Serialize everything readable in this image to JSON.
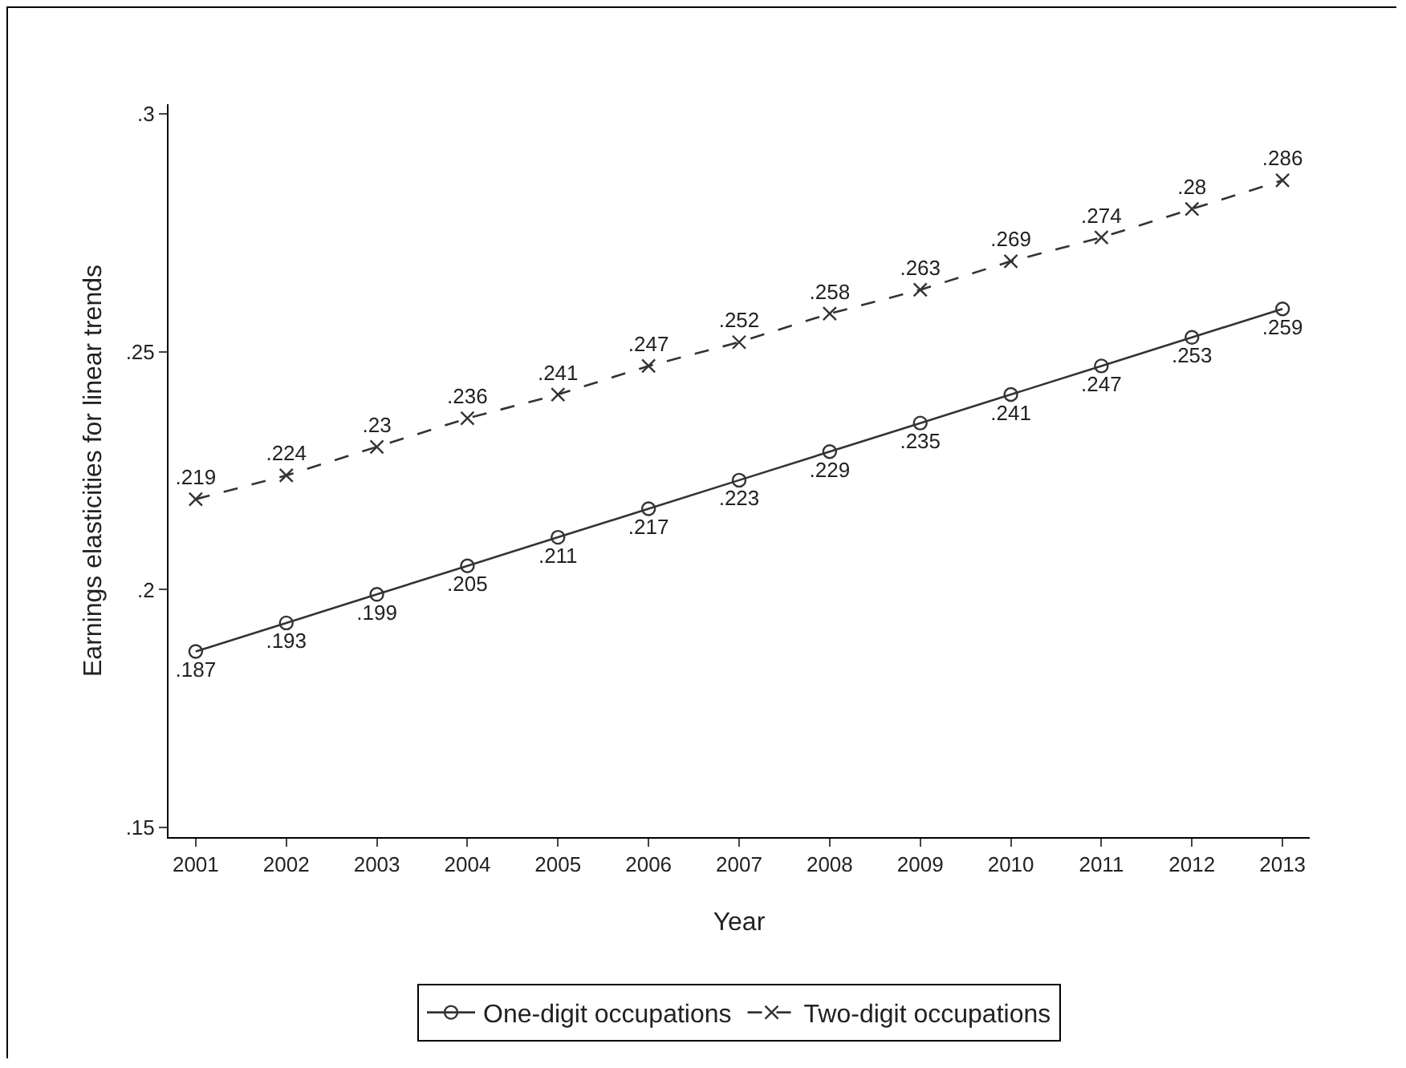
{
  "chart_data": {
    "type": "line",
    "xlabel": "Year",
    "ylabel": "Earnings elasticities for linear trends",
    "x": [
      2001,
      2002,
      2003,
      2004,
      2005,
      2006,
      2007,
      2008,
      2009,
      2010,
      2011,
      2012,
      2013
    ],
    "xlim": [
      2000.7,
      2013.3
    ],
    "xticks": [
      2001,
      2002,
      2003,
      2004,
      2005,
      2006,
      2007,
      2008,
      2009,
      2010,
      2011,
      2012,
      2013
    ],
    "ylim": [
      0.148,
      0.302
    ],
    "yticks": [
      {
        "value": 0.15,
        "label": ".15"
      },
      {
        "value": 0.2,
        "label": ".2"
      },
      {
        "value": 0.25,
        "label": ".25"
      },
      {
        "value": 0.3,
        "label": ".3"
      }
    ],
    "grid": false,
    "legend": "bottom",
    "series": [
      {
        "name": "One-digit occupations",
        "color": "#333333",
        "marker": "circle",
        "line_style": "solid",
        "values": [
          0.187,
          0.193,
          0.199,
          0.205,
          0.211,
          0.217,
          0.223,
          0.229,
          0.235,
          0.241,
          0.247,
          0.253,
          0.259
        ],
        "value_labels": [
          ".187",
          ".193",
          ".199",
          ".205",
          ".211",
          ".217",
          ".223",
          ".229",
          ".235",
          ".241",
          ".247",
          ".253",
          ".259"
        ]
      },
      {
        "name": "Two-digit occupations",
        "color": "#333333",
        "marker": "cross",
        "line_style": "dashed",
        "values": [
          0.219,
          0.224,
          0.23,
          0.236,
          0.241,
          0.247,
          0.252,
          0.258,
          0.263,
          0.269,
          0.274,
          0.28,
          0.286
        ],
        "value_labels": [
          ".219",
          ".224",
          ".23",
          ".236",
          ".241",
          ".247",
          ".252",
          ".258",
          ".263",
          ".269",
          ".274",
          ".28",
          ".286"
        ]
      }
    ]
  }
}
